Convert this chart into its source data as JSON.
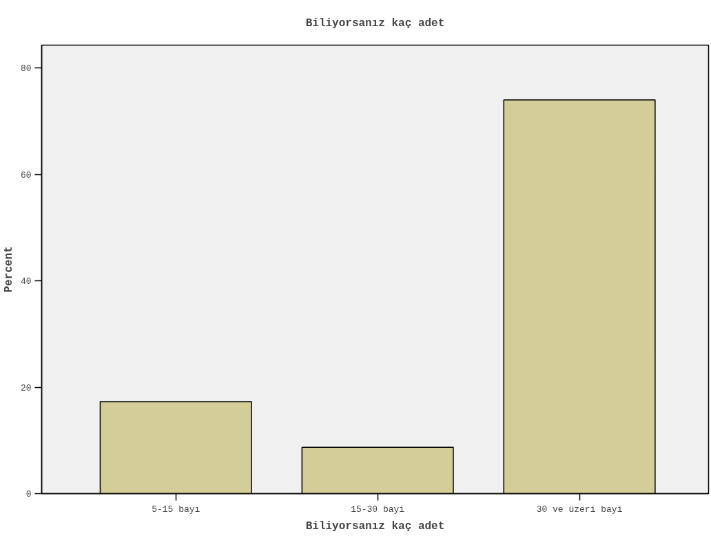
{
  "chart_data": {
    "type": "bar",
    "title": "Biliyorsanız kaç adet",
    "xlabel": "Biliyorsanız kaç adet",
    "ylabel": "Percent",
    "categories": [
      "5-15 bayı",
      "15-30 bayi",
      "30 ve üzeri bayi"
    ],
    "values": [
      17.3,
      8.7,
      74.0
    ],
    "color": "#d3ce97",
    "ylim": [
      0,
      84.3
    ],
    "yticks": [
      0,
      20,
      40,
      60,
      80
    ],
    "grid": false
  }
}
